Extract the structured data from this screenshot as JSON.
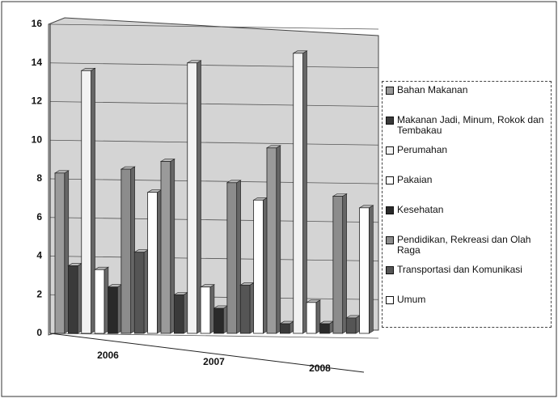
{
  "chart_data": {
    "type": "bar",
    "categories": [
      "2006",
      "2007",
      "2008"
    ],
    "series": [
      {
        "name": "Bahan Makanan",
        "color": "#9a9a9a",
        "values": [
          8.3,
          8.9,
          9.6
        ]
      },
      {
        "name": "Makanan Jadi, Minum, Rokok dan Tembakau",
        "color": "#3a3a3a",
        "values": [
          3.5,
          2.0,
          0.5
        ]
      },
      {
        "name": "Perumahan",
        "color": "#f2f2f2",
        "values": [
          13.6,
          14.0,
          14.5
        ]
      },
      {
        "name": "Pakaian",
        "color": "#ffffff",
        "values": [
          3.3,
          2.4,
          1.6
        ]
      },
      {
        "name": "Kesehatan",
        "color": "#2a2a2a",
        "values": [
          2.4,
          1.3,
          0.5
        ]
      },
      {
        "name": "Pendidikan, Rekreasi dan Olah Raga",
        "color": "#8c8c8c",
        "values": [
          8.5,
          7.8,
          7.1
        ]
      },
      {
        "name": "Transportasi dan Komunikasi",
        "color": "#555555",
        "values": [
          4.2,
          2.5,
          0.8
        ]
      },
      {
        "name": "Umum",
        "color": "#ffffff",
        "values": [
          7.3,
          6.9,
          6.5
        ]
      }
    ],
    "ylim": [
      0,
      16
    ],
    "yticks": [
      0,
      2,
      4,
      6,
      8,
      10,
      12,
      14,
      16
    ],
    "grid": true
  }
}
